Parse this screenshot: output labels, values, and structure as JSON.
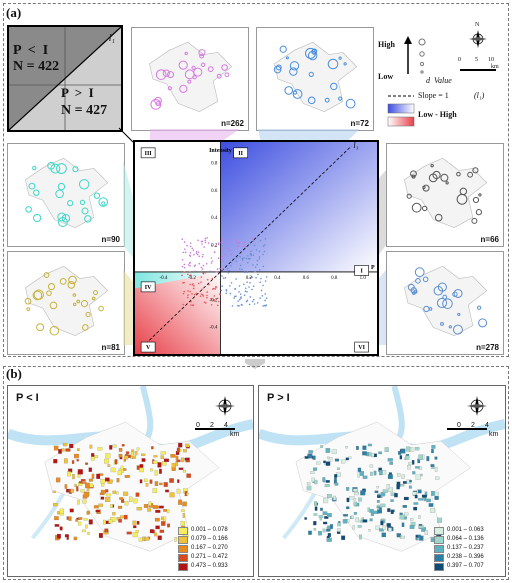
{
  "panel_a_label": "(a)",
  "panel_b_label": "(b)",
  "inset": {
    "line_label": "l₁",
    "top_text1": "P  <  I",
    "top_text2": "N = 422",
    "bottom_text1": "P  >  I",
    "bottom_text2": "N = 427"
  },
  "legend": {
    "high": "High",
    "low": "Low",
    "d_value": "d  Value",
    "slope": "Slope = 1",
    "slope_label": "(l₁)",
    "low_high": "Low - High",
    "compass_n": "N",
    "scale_0": "0",
    "scale_5": "5",
    "scale_10": "10",
    "scale_unit": "km",
    "colors": {
      "blue": "#3d4ee0",
      "red": "#e8404a"
    }
  },
  "minimaps": [
    {
      "n": "n=262",
      "color": "#d67be0"
    },
    {
      "n": "n=72",
      "color": "#4a8ede"
    },
    {
      "n": "n=90",
      "color": "#3ed6c8"
    },
    {
      "n": "n=66",
      "color": "#555555"
    },
    {
      "n": "n=81",
      "color": "#c7b23a"
    },
    {
      "n": "n=278",
      "color": "#5b8fd0"
    }
  ],
  "scatter": {
    "title": "Intensity",
    "x_axis_label": "P",
    "line_label": "l₁",
    "quadrants": [
      "III",
      "II",
      "I",
      "IV",
      "V",
      "VI"
    ],
    "ticks_y": [
      "0.8",
      "0.6",
      "0.4",
      "0.2",
      "-0.2",
      "-0.4"
    ],
    "ticks_x": [
      "-0.4",
      "-0.2",
      "0.2",
      "0.4",
      "0.6",
      "0.8",
      "1.0"
    ]
  },
  "map_left": {
    "title": "P < I",
    "scale": [
      "0",
      "2",
      "4"
    ],
    "unit": "km",
    "legend": [
      "0.001 – 0.078",
      "0.079 – 0.166",
      "0.167 – 0.270",
      "0.271 – 0.472",
      "0.473 – 0.933"
    ],
    "colors": [
      "#f5ee5a",
      "#f2c13a",
      "#ea8a1f",
      "#d84a1a",
      "#b51414"
    ]
  },
  "map_right": {
    "title": "P > I",
    "scale": [
      "0",
      "2",
      "4"
    ],
    "unit": "km",
    "legend": [
      "0.001 – 0.063",
      "0.064 – 0.136",
      "0.137 – 0.237",
      "0.238 – 0.396",
      "0.397 – 0.707"
    ],
    "colors": [
      "#d7eee2",
      "#9fd6cc",
      "#5fb2c2",
      "#2b7fa6",
      "#0e4a78"
    ]
  }
}
